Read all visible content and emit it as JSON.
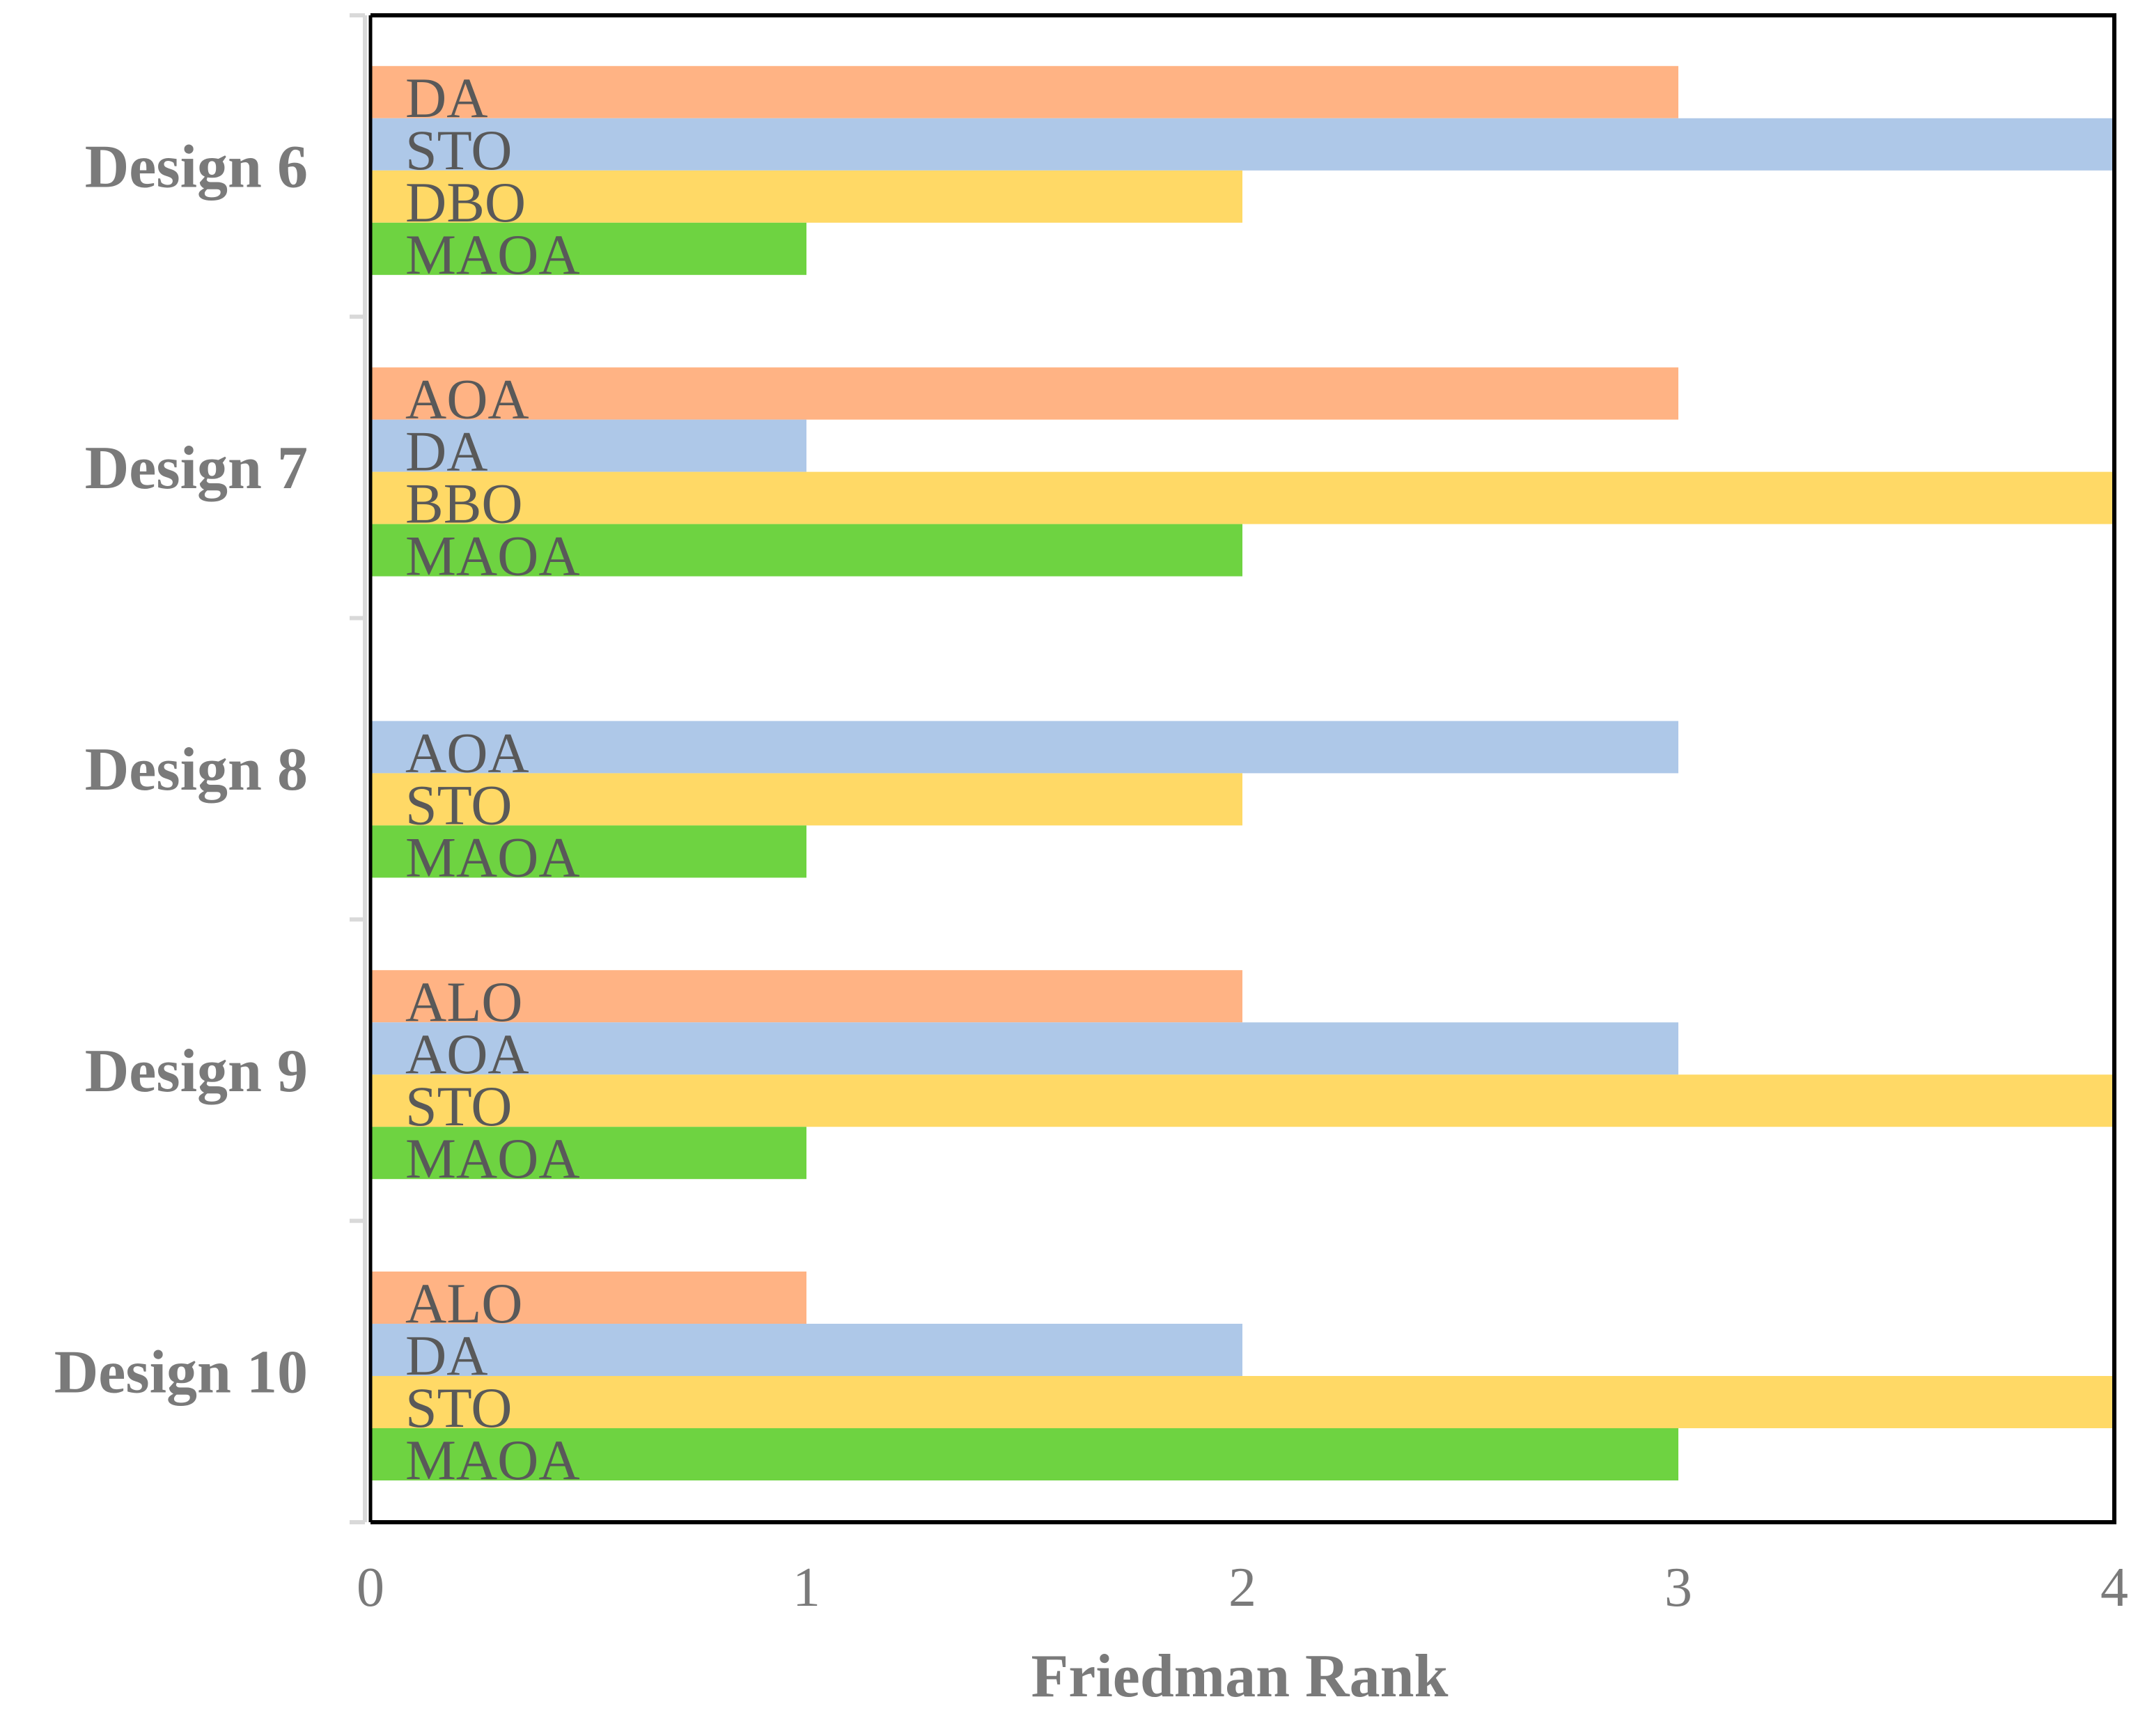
{
  "chart_data": {
    "type": "bar",
    "orientation": "horizontal",
    "xlabel": "Friedman Rank",
    "ylabel": "",
    "xlim": [
      0,
      4
    ],
    "xticks": [
      "0",
      "1",
      "2",
      "3",
      "4"
    ],
    "grid": false,
    "colors": {
      "orange": "#FFB384",
      "blue": "#AEC8E8",
      "yellow": "#FFD966",
      "green": "#6ED341",
      "text": "#595959",
      "axis_text": "#7a7a7a",
      "frame": "#000000",
      "axis_line": "#d9d9d9"
    },
    "groups": [
      {
        "category": "Design 6",
        "bars": [
          {
            "label": "DA",
            "value": 3,
            "color": "orange"
          },
          {
            "label": "STO",
            "value": 4,
            "color": "blue"
          },
          {
            "label": "DBO",
            "value": 2,
            "color": "yellow"
          },
          {
            "label": "MAOA",
            "value": 1,
            "color": "green"
          }
        ]
      },
      {
        "category": "Design 7",
        "bars": [
          {
            "label": "AOA",
            "value": 3,
            "color": "orange"
          },
          {
            "label": "DA",
            "value": 1,
            "color": "blue"
          },
          {
            "label": "BBO",
            "value": 4,
            "color": "yellow"
          },
          {
            "label": "MAOA",
            "value": 2,
            "color": "green"
          }
        ]
      },
      {
        "category": "Design 8",
        "bars": [
          {
            "label": "AOA",
            "value": 3,
            "color": "blue"
          },
          {
            "label": "STO",
            "value": 2,
            "color": "yellow"
          },
          {
            "label": "MAOA",
            "value": 1,
            "color": "green"
          }
        ]
      },
      {
        "category": "Design 9",
        "bars": [
          {
            "label": "ALO",
            "value": 2,
            "color": "orange"
          },
          {
            "label": "AOA",
            "value": 3,
            "color": "blue"
          },
          {
            "label": "STO",
            "value": 4,
            "color": "yellow"
          },
          {
            "label": "MAOA",
            "value": 1,
            "color": "green"
          }
        ]
      },
      {
        "category": "Design 10",
        "bars": [
          {
            "label": "ALO",
            "value": 1,
            "color": "orange"
          },
          {
            "label": "DA",
            "value": 2,
            "color": "blue"
          },
          {
            "label": "STO",
            "value": 4,
            "color": "yellow"
          },
          {
            "label": "MAOA",
            "value": 3,
            "color": "green"
          }
        ]
      }
    ]
  }
}
